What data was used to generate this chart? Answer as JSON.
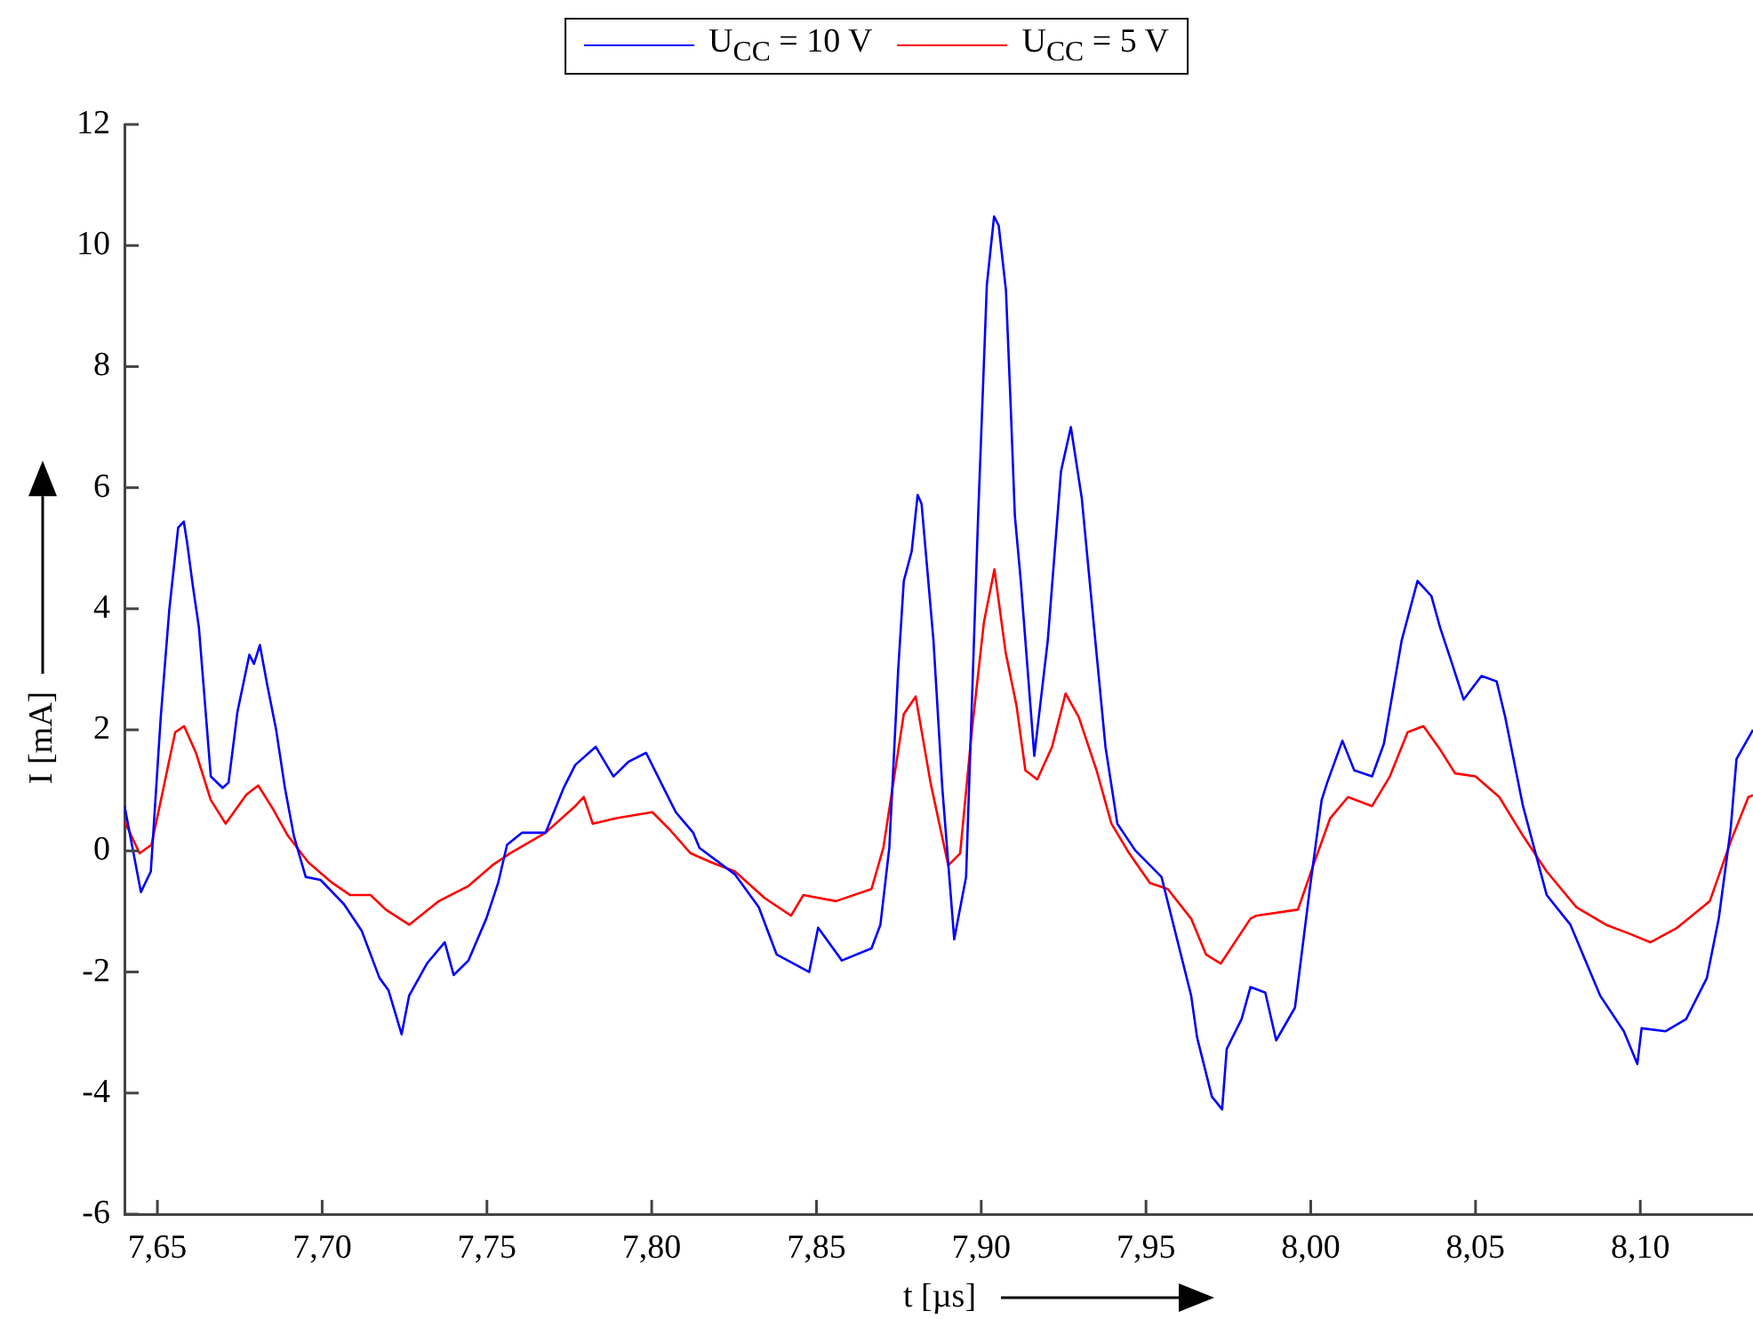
{
  "chart_data": {
    "type": "line",
    "xlabel": "t [µs]",
    "ylabel": "I [mA]",
    "xlim": [
      7.64,
      8.1342
    ],
    "ylim": [
      -6,
      12
    ],
    "xticks": [
      {
        "value": 7.65,
        "label": "7,65"
      },
      {
        "value": 7.7,
        "label": "7,70"
      },
      {
        "value": 7.75,
        "label": "7,75"
      },
      {
        "value": 7.8,
        "label": "7,80"
      },
      {
        "value": 7.85,
        "label": "7,85"
      },
      {
        "value": 7.9,
        "label": "7,90"
      },
      {
        "value": 7.95,
        "label": "7,95"
      },
      {
        "value": 8.0,
        "label": "8,00"
      },
      {
        "value": 8.05,
        "label": "8,05"
      },
      {
        "value": 8.1,
        "label": "8,10"
      }
    ],
    "yticks": [
      -6,
      -4,
      -2,
      0,
      2,
      4,
      6,
      8,
      10,
      12
    ],
    "grid": false,
    "legend": "top",
    "marker": "none",
    "line_style": "solid",
    "series": [
      {
        "name": "U$_{CC}$ = 10 V",
        "color": "#0000ff",
        "x": [
          7.64,
          7.645,
          7.648,
          7.651,
          7.6536,
          7.6563,
          7.658,
          7.659,
          7.6608,
          7.6626,
          7.6662,
          7.6698,
          7.6716,
          7.6743,
          7.6779,
          7.6793,
          7.6811,
          7.6833,
          7.686,
          7.6887,
          7.6914,
          7.695,
          7.6995,
          7.7066,
          7.712,
          7.7174,
          7.7201,
          7.7241,
          7.7264,
          7.7318,
          7.7372,
          7.7399,
          7.7444,
          7.7498,
          7.7534,
          7.7561,
          7.7606,
          7.7678,
          7.7732,
          7.7768,
          7.783,
          7.7884,
          7.7929,
          7.7983,
          7.8037,
          7.8073,
          7.8126,
          7.8145,
          7.8253,
          7.8325,
          7.8379,
          7.8478,
          7.8505,
          7.8577,
          7.8667,
          7.8694,
          7.8721,
          7.8748,
          7.8765,
          7.8789,
          7.8807,
          7.8819,
          7.8855,
          7.8882,
          7.8918,
          7.8954,
          7.899,
          7.9017,
          7.9039,
          7.9053,
          7.9075,
          7.9089,
          7.9102,
          7.912,
          7.9161,
          7.9202,
          7.9242,
          7.9272,
          7.9305,
          7.9341,
          7.9377,
          7.9413,
          7.9467,
          7.9547,
          7.9637,
          7.9655,
          7.97,
          7.9731,
          7.9745,
          7.979,
          7.9817,
          7.9862,
          7.9895,
          7.9952,
          7.9997,
          8.0033,
          8.005,
          8.0096,
          8.0132,
          8.0186,
          8.0222,
          8.0276,
          8.0324,
          8.0366,
          8.0393,
          8.0429,
          8.0464,
          8.0518,
          8.0564,
          8.059,
          8.0644,
          8.0716,
          8.0788,
          8.0878,
          8.095,
          8.0991,
          8.1004,
          8.1076,
          8.1139,
          8.1202,
          8.1238,
          8.1274,
          8.1292,
          8.1342
        ],
        "values": [
          0.75,
          -0.68,
          -0.34,
          2.2,
          3.98,
          5.34,
          5.44,
          5.1,
          4.36,
          3.69,
          1.23,
          1.04,
          1.13,
          2.3,
          3.24,
          3.09,
          3.4,
          2.75,
          2.01,
          1.04,
          0.25,
          -0.43,
          -0.48,
          -0.88,
          -1.32,
          -2.1,
          -2.3,
          -3.03,
          -2.39,
          -1.86,
          -1.51,
          -2.05,
          -1.81,
          -1.12,
          -0.53,
          0.1,
          0.3,
          0.3,
          1.03,
          1.42,
          1.72,
          1.23,
          1.47,
          1.62,
          1.03,
          0.64,
          0.3,
          0.05,
          -0.39,
          -0.93,
          -1.71,
          -2.0,
          -1.27,
          -1.81,
          -1.61,
          -1.22,
          0.05,
          2.99,
          4.46,
          4.95,
          5.88,
          5.73,
          3.48,
          1.03,
          -1.46,
          -0.43,
          5.44,
          9.35,
          10.48,
          10.33,
          9.26,
          7.4,
          5.54,
          4.46,
          1.57,
          3.48,
          6.27,
          7.0,
          5.83,
          3.77,
          1.72,
          0.45,
          0.01,
          -0.43,
          -2.39,
          -3.08,
          -4.06,
          -4.27,
          -3.27,
          -2.78,
          -2.25,
          -2.34,
          -3.13,
          -2.59,
          -0.63,
          0.84,
          1.13,
          1.82,
          1.33,
          1.23,
          1.77,
          3.48,
          4.46,
          4.21,
          3.68,
          3.09,
          2.5,
          2.89,
          2.8,
          2.21,
          0.74,
          -0.73,
          -1.22,
          -2.39,
          -2.98,
          -3.52,
          -2.93,
          -2.98,
          -2.78,
          -2.1,
          -1.12,
          0.35,
          1.52,
          2.0
        ]
      },
      {
        "name": "U$_{CC}$ = 5 V",
        "color": "#ff0000",
        "x": [
          7.64,
          7.6446,
          7.6482,
          7.6518,
          7.6554,
          7.6581,
          7.6617,
          7.6662,
          7.6707,
          7.677,
          7.6806,
          7.6851,
          7.6896,
          7.6958,
          7.7031,
          7.7085,
          7.7147,
          7.7193,
          7.7264,
          7.7354,
          7.7444,
          7.7516,
          7.757,
          7.7678,
          7.7768,
          7.7794,
          7.7821,
          7.7893,
          7.8002,
          7.8055,
          7.8118,
          7.8181,
          7.8253,
          7.8343,
          7.8423,
          7.846,
          7.8559,
          7.8667,
          7.8703,
          7.8765,
          7.8801,
          7.8846,
          7.89,
          7.8936,
          7.8972,
          7.9008,
          7.904,
          7.9074,
          7.9107,
          7.9134,
          7.917,
          7.9215,
          7.9256,
          7.9296,
          7.935,
          7.9395,
          7.9449,
          7.9512,
          7.9566,
          7.9637,
          7.9682,
          7.9727,
          7.9817,
          7.9835,
          7.9961,
          8.0014,
          8.0059,
          8.0113,
          8.0186,
          8.024,
          8.0294,
          8.0342,
          8.0393,
          8.0438,
          8.05,
          8.0572,
          8.0644,
          8.0716,
          8.0806,
          8.0896,
          8.0968,
          8.1031,
          8.1112,
          8.1211,
          8.1274,
          8.1328,
          8.1342
        ],
        "values": [
          0.49,
          -0.04,
          0.1,
          1.03,
          1.96,
          2.06,
          1.62,
          0.84,
          0.45,
          0.93,
          1.08,
          0.69,
          0.25,
          -0.19,
          -0.53,
          -0.73,
          -0.73,
          -0.97,
          -1.22,
          -0.83,
          -0.58,
          -0.24,
          -0.04,
          0.3,
          0.74,
          0.89,
          0.45,
          0.54,
          0.64,
          0.35,
          -0.04,
          -0.19,
          -0.34,
          -0.78,
          -1.07,
          -0.73,
          -0.83,
          -0.63,
          0.05,
          2.26,
          2.55,
          1.13,
          -0.24,
          -0.04,
          2.01,
          3.77,
          4.65,
          3.28,
          2.4,
          1.33,
          1.18,
          1.72,
          2.6,
          2.21,
          1.33,
          0.45,
          -0.04,
          -0.53,
          -0.63,
          -1.12,
          -1.71,
          -1.86,
          -1.12,
          -1.07,
          -0.97,
          -0.14,
          0.54,
          0.89,
          0.74,
          1.23,
          1.96,
          2.06,
          1.67,
          1.28,
          1.23,
          0.89,
          0.25,
          -0.34,
          -0.93,
          -1.22,
          -1.37,
          -1.51,
          -1.27,
          -0.83,
          0.15,
          0.89,
          0.92
        ]
      }
    ]
  }
}
